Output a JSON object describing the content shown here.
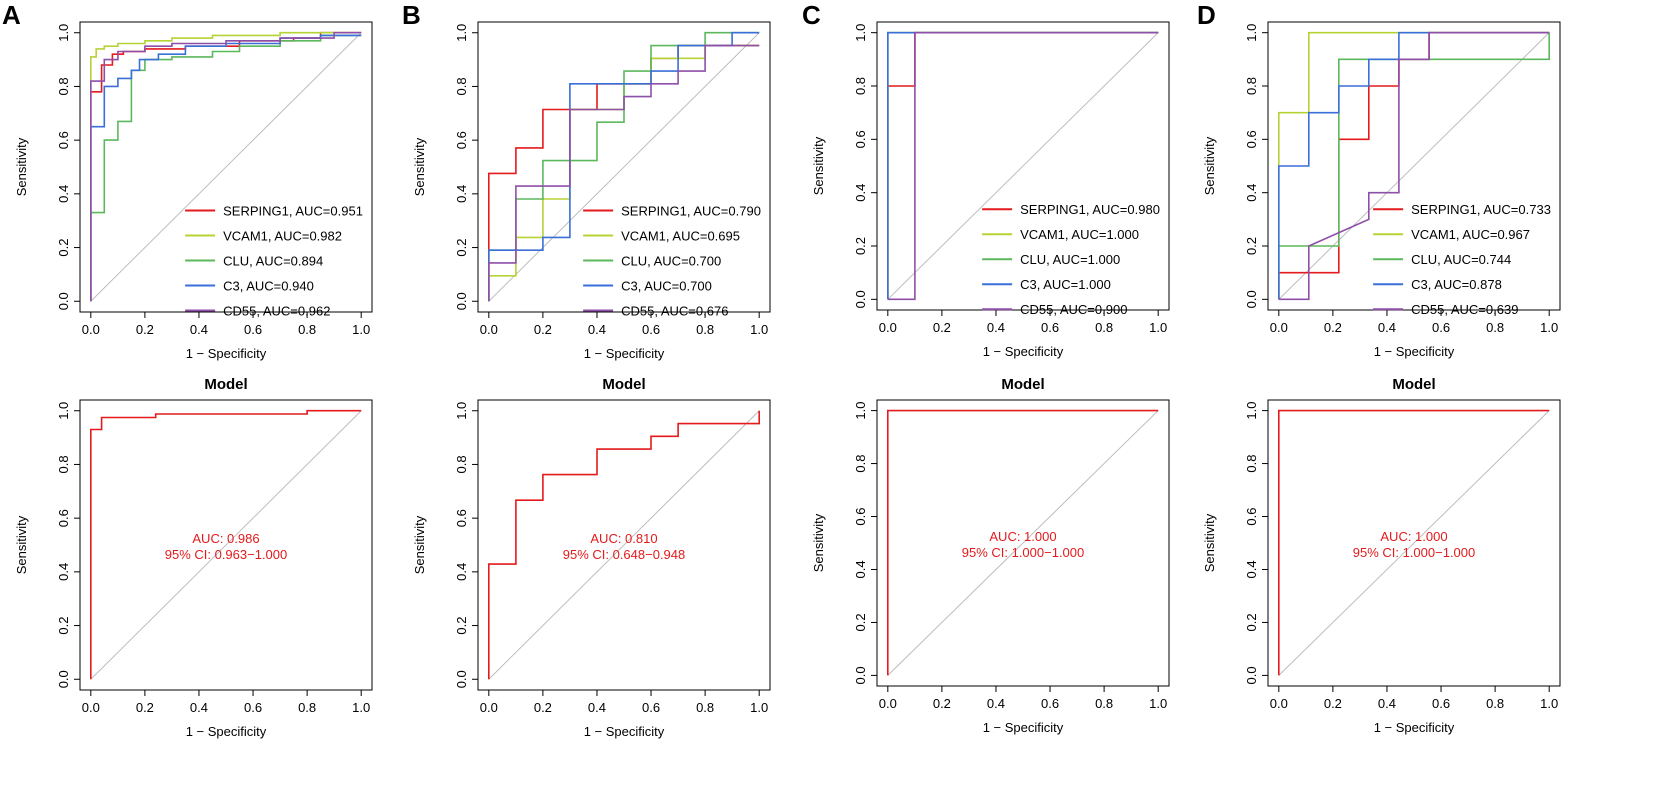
{
  "figure": {
    "panel_letters": [
      "A",
      "B",
      "C",
      "D"
    ]
  },
  "colors": {
    "SERPING1": "#e41a1c",
    "VCAM1": "#b5d334",
    "CLU": "#5cb85c",
    "C3": "#3a6fd8",
    "CD55": "#8e4fa8",
    "model": "#e41a1c",
    "diagonal": "#bdbdbd"
  },
  "chart_data": [
    {
      "id": "A-top",
      "type": "line",
      "panel": "A",
      "title": "",
      "xlabel": "1 − Specificity",
      "ylabel": "Sensitivity",
      "xlim": [
        0,
        1
      ],
      "ylim": [
        0,
        1
      ],
      "xticks": [
        "0.0",
        "0.2",
        "0.4",
        "0.6",
        "0.8",
        "1.0"
      ],
      "yticks": [
        "0.0",
        "0.2",
        "0.4",
        "0.6",
        "0.8",
        "1.0"
      ],
      "legend_position": "bottom-right",
      "series": [
        {
          "name": "SERPING1",
          "label": "SERPING1, AUC=0.951",
          "x": [
            0,
            0,
            0.04,
            0.04,
            0.08,
            0.08,
            0.12,
            0.12,
            0.2,
            0.2,
            0.35,
            0.35,
            0.55,
            0.55,
            0.75,
            0.75,
            0.85,
            0.85,
            1
          ],
          "y": [
            0,
            0.78,
            0.78,
            0.88,
            0.88,
            0.92,
            0.92,
            0.93,
            0.93,
            0.94,
            0.94,
            0.95,
            0.95,
            0.97,
            0.97,
            0.98,
            0.98,
            1,
            1
          ]
        },
        {
          "name": "VCAM1",
          "label": "VCAM1, AUC=0.982",
          "x": [
            0,
            0,
            0.02,
            0.02,
            0.05,
            0.05,
            0.1,
            0.1,
            0.2,
            0.2,
            0.3,
            0.3,
            0.45,
            0.45,
            0.7,
            0.7,
            1
          ],
          "y": [
            0,
            0.91,
            0.91,
            0.94,
            0.94,
            0.95,
            0.95,
            0.96,
            0.96,
            0.97,
            0.97,
            0.98,
            0.98,
            0.99,
            0.99,
            1,
            1
          ]
        },
        {
          "name": "CLU",
          "label": "CLU, AUC=0.894",
          "x": [
            0,
            0,
            0.05,
            0.05,
            0.1,
            0.1,
            0.15,
            0.15,
            0.2,
            0.2,
            0.3,
            0.3,
            0.45,
            0.45,
            0.55,
            0.55,
            0.7,
            0.7,
            0.85,
            0.85,
            1
          ],
          "y": [
            0,
            0.33,
            0.33,
            0.6,
            0.6,
            0.67,
            0.67,
            0.86,
            0.86,
            0.9,
            0.9,
            0.91,
            0.91,
            0.93,
            0.93,
            0.95,
            0.95,
            0.97,
            0.97,
            0.99,
            0.99
          ]
        },
        {
          "name": "C3",
          "label": "C3, AUC=0.940",
          "x": [
            0,
            0,
            0.05,
            0.05,
            0.1,
            0.1,
            0.15,
            0.15,
            0.18,
            0.18,
            0.25,
            0.25,
            0.35,
            0.35,
            0.5,
            0.5,
            0.7,
            0.7,
            0.85,
            0.85,
            1
          ],
          "y": [
            0,
            0.65,
            0.65,
            0.8,
            0.8,
            0.83,
            0.83,
            0.86,
            0.86,
            0.9,
            0.9,
            0.92,
            0.92,
            0.95,
            0.95,
            0.96,
            0.96,
            0.98,
            0.98,
            0.99,
            0.99
          ]
        },
        {
          "name": "CD55",
          "label": "CD55, AUC=0.962",
          "x": [
            0,
            0,
            0.05,
            0.05,
            0.1,
            0.1,
            0.2,
            0.2,
            0.3,
            0.3,
            0.5,
            0.5,
            0.7,
            0.7,
            0.9,
            0.9,
            1
          ],
          "y": [
            0,
            0.82,
            0.82,
            0.9,
            0.9,
            0.93,
            0.93,
            0.95,
            0.95,
            0.96,
            0.96,
            0.97,
            0.97,
            0.98,
            0.98,
            1,
            1
          ]
        }
      ]
    },
    {
      "id": "B-top",
      "type": "line",
      "panel": "B",
      "title": "",
      "xlabel": "1 − Specificity",
      "ylabel": "Sensitivity",
      "xlim": [
        0,
        1
      ],
      "ylim": [
        0,
        1
      ],
      "xticks": [
        "0.0",
        "0.2",
        "0.4",
        "0.6",
        "0.8",
        "1.0"
      ],
      "yticks": [
        "0.0",
        "0.2",
        "0.4",
        "0.6",
        "0.8",
        "1.0"
      ],
      "legend_position": "bottom-right",
      "series": [
        {
          "name": "SERPING1",
          "label": "SERPING1, AUC=0.790",
          "x": [
            0,
            0,
            0.1,
            0.1,
            0.2,
            0.2,
            0.4,
            0.4,
            0.6,
            0.6,
            0.7,
            0.7,
            1
          ],
          "y": [
            0,
            0.476,
            0.476,
            0.571,
            0.571,
            0.714,
            0.714,
            0.81,
            0.81,
            0.905,
            0.905,
            0.952,
            0.952
          ]
        },
        {
          "name": "VCAM1",
          "label": "VCAM1, AUC=0.695",
          "x": [
            0,
            0,
            0.1,
            0.1,
            0.2,
            0.2,
            0.3,
            0.3,
            0.5,
            0.5,
            0.6,
            0.6,
            0.8,
            0.8,
            1
          ],
          "y": [
            0,
            0.095,
            0.095,
            0.238,
            0.238,
            0.381,
            0.381,
            0.714,
            0.714,
            0.81,
            0.81,
            0.905,
            0.905,
            0.952,
            0.952
          ]
        },
        {
          "name": "CLU",
          "label": "CLU, AUC=0.700",
          "x": [
            0,
            0,
            0.1,
            0.1,
            0.2,
            0.2,
            0.4,
            0.4,
            0.5,
            0.5,
            0.6,
            0.6,
            0.8,
            0.8,
            1
          ],
          "y": [
            0,
            0.19,
            0.19,
            0.381,
            0.381,
            0.524,
            0.524,
            0.667,
            0.667,
            0.857,
            0.857,
            0.952,
            0.952,
            1,
            1
          ]
        },
        {
          "name": "C3",
          "label": "C3, AUC=0.700",
          "x": [
            0,
            0,
            0.2,
            0.2,
            0.3,
            0.3,
            0.6,
            0.6,
            0.7,
            0.7,
            0.9,
            0.9,
            1
          ],
          "y": [
            0,
            0.19,
            0.19,
            0.238,
            0.238,
            0.81,
            0.81,
            0.857,
            0.857,
            0.952,
            0.952,
            1,
            1
          ]
        },
        {
          "name": "CD55",
          "label": "CD55, AUC=0.676",
          "x": [
            0,
            0,
            0.1,
            0.1,
            0.3,
            0.3,
            0.5,
            0.5,
            0.6,
            0.6,
            0.7,
            0.7,
            0.8,
            0.8,
            1
          ],
          "y": [
            0,
            0.143,
            0.143,
            0.429,
            0.429,
            0.714,
            0.714,
            0.762,
            0.762,
            0.81,
            0.81,
            0.857,
            0.857,
            0.952,
            0.952
          ]
        }
      ]
    },
    {
      "id": "C-top",
      "type": "line",
      "panel": "C",
      "title": "",
      "xlabel": "1 − Specificity",
      "ylabel": "Sensitivity",
      "xlim": [
        0,
        1
      ],
      "ylim": [
        0,
        1
      ],
      "xticks": [
        "0.0",
        "0.2",
        "0.4",
        "0.6",
        "0.8",
        "1.0"
      ],
      "yticks": [
        "0.0",
        "0.2",
        "0.4",
        "0.6",
        "0.8",
        "1.0"
      ],
      "legend_position": "bottom-right",
      "series": [
        {
          "name": "SERPING1",
          "label": "SERPING1, AUC=0.980",
          "x": [
            0,
            0,
            0.1,
            0.1,
            1
          ],
          "y": [
            0,
            0.8,
            0.8,
            1,
            1
          ]
        },
        {
          "name": "VCAM1",
          "label": "VCAM1, AUC=1.000",
          "x": [
            0,
            0,
            1
          ],
          "y": [
            0,
            1,
            1
          ]
        },
        {
          "name": "CLU",
          "label": "CLU, AUC=1.000",
          "x": [
            0,
            0,
            1
          ],
          "y": [
            0,
            1,
            1
          ]
        },
        {
          "name": "C3",
          "label": "C3, AUC=1.000",
          "x": [
            0,
            0,
            1
          ],
          "y": [
            0,
            1,
            1
          ]
        },
        {
          "name": "CD55",
          "label": "CD55, AUC=0.900",
          "x": [
            0,
            0.1,
            0.1,
            1
          ],
          "y": [
            0,
            0,
            1,
            1
          ]
        }
      ]
    },
    {
      "id": "D-top",
      "type": "line",
      "panel": "D",
      "title": "",
      "xlabel": "1 − Specificity",
      "ylabel": "Sensitivity",
      "xlim": [
        0,
        1
      ],
      "ylim": [
        0,
        1
      ],
      "xticks": [
        "0.0",
        "0.2",
        "0.4",
        "0.6",
        "0.8",
        "1.0"
      ],
      "yticks": [
        "0.0",
        "0.2",
        "0.4",
        "0.6",
        "0.8",
        "1.0"
      ],
      "legend_position": "bottom-right",
      "series": [
        {
          "name": "SERPING1",
          "label": "SERPING1, AUC=0.733",
          "x": [
            0,
            0,
            0.222,
            0.222,
            0.333,
            0.333,
            0.444,
            0.444,
            0.556,
            0.556,
            1
          ],
          "y": [
            0,
            0.1,
            0.1,
            0.6,
            0.6,
            0.8,
            0.8,
            0.9,
            0.9,
            1,
            1
          ]
        },
        {
          "name": "VCAM1",
          "label": "VCAM1, AUC=0.967",
          "x": [
            0,
            0,
            0.111,
            0.111,
            1
          ],
          "y": [
            0,
            0.7,
            0.7,
            1,
            1
          ]
        },
        {
          "name": "CLU",
          "label": "CLU, AUC=0.744",
          "x": [
            0,
            0,
            0.222,
            0.222,
            1,
            1
          ],
          "y": [
            0,
            0.2,
            0.2,
            0.9,
            0.9,
            1
          ]
        },
        {
          "name": "C3",
          "label": "C3, AUC=0.878",
          "x": [
            0,
            0,
            0.111,
            0.111,
            0.222,
            0.222,
            0.333,
            0.333,
            0.444,
            0.444,
            1
          ],
          "y": [
            0,
            0.5,
            0.5,
            0.7,
            0.7,
            0.8,
            0.8,
            0.9,
            0.9,
            1,
            1
          ]
        },
        {
          "name": "CD55",
          "label": "CD55, AUC=0.639",
          "x": [
            0,
            0.111,
            0.111,
            0.333,
            0.333,
            0.444,
            0.444,
            0.556,
            0.556,
            1
          ],
          "y": [
            0,
            0,
            0.2,
            0.3,
            0.4,
            0.4,
            0.9,
            0.9,
            1,
            1
          ]
        }
      ]
    },
    {
      "id": "A-bottom",
      "type": "line",
      "panel": "A",
      "title": "Model",
      "xlabel": "1 − Specificity",
      "ylabel": "Sensitivity",
      "xlim": [
        0,
        1
      ],
      "ylim": [
        0,
        1
      ],
      "xticks": [
        "0.0",
        "0.2",
        "0.4",
        "0.6",
        "0.8",
        "1.0"
      ],
      "yticks": [
        "0.0",
        "0.2",
        "0.4",
        "0.6",
        "0.8",
        "1.0"
      ],
      "annotation": {
        "auc": "AUC: 0.986",
        "ci": "95% CI: 0.963−1.000"
      },
      "series": [
        {
          "name": "Model",
          "x": [
            0,
            0,
            0.04,
            0.04,
            0.24,
            0.24,
            0.8,
            0.8,
            1
          ],
          "y": [
            0,
            0.93,
            0.93,
            0.975,
            0.975,
            0.988,
            0.988,
            1,
            1
          ]
        }
      ]
    },
    {
      "id": "B-bottom",
      "type": "line",
      "panel": "B",
      "title": "Model",
      "xlabel": "1 − Specificity",
      "ylabel": "Sensitivity",
      "xlim": [
        0,
        1
      ],
      "ylim": [
        0,
        1
      ],
      "xticks": [
        "0.0",
        "0.2",
        "0.4",
        "0.6",
        "0.8",
        "1.0"
      ],
      "yticks": [
        "0.0",
        "0.2",
        "0.4",
        "0.6",
        "0.8",
        "1.0"
      ],
      "annotation": {
        "auc": "AUC: 0.810",
        "ci": "95% CI: 0.648−0.948"
      },
      "series": [
        {
          "name": "Model",
          "x": [
            0,
            0,
            0.1,
            0.1,
            0.2,
            0.2,
            0.4,
            0.4,
            0.6,
            0.6,
            0.7,
            0.7,
            1,
            1
          ],
          "y": [
            0,
            0.429,
            0.429,
            0.667,
            0.667,
            0.762,
            0.762,
            0.857,
            0.857,
            0.905,
            0.905,
            0.952,
            0.952,
            1
          ]
        }
      ]
    },
    {
      "id": "C-bottom",
      "type": "line",
      "panel": "C",
      "title": "Model",
      "xlabel": "1 − Specificity",
      "ylabel": "Sensitivity",
      "xlim": [
        0,
        1
      ],
      "ylim": [
        0,
        1
      ],
      "xticks": [
        "0.0",
        "0.2",
        "0.4",
        "0.6",
        "0.8",
        "1.0"
      ],
      "yticks": [
        "0.0",
        "0.2",
        "0.4",
        "0.6",
        "0.8",
        "1.0"
      ],
      "annotation": {
        "auc": "AUC: 1.000",
        "ci": "95% CI: 1.000−1.000"
      },
      "series": [
        {
          "name": "Model",
          "x": [
            0,
            0,
            1
          ],
          "y": [
            0,
            1,
            1
          ]
        }
      ]
    },
    {
      "id": "D-bottom",
      "type": "line",
      "panel": "D",
      "title": "Model",
      "xlabel": "1 − Specificity",
      "ylabel": "Sensitivity",
      "xlim": [
        0,
        1
      ],
      "ylim": [
        0,
        1
      ],
      "xticks": [
        "0.0",
        "0.2",
        "0.4",
        "0.6",
        "0.8",
        "1.0"
      ],
      "yticks": [
        "0.0",
        "0.2",
        "0.4",
        "0.6",
        "0.8",
        "1.0"
      ],
      "annotation": {
        "auc": "AUC: 1.000",
        "ci": "95% CI: 1.000−1.000"
      },
      "series": [
        {
          "name": "Model",
          "x": [
            0,
            0,
            1
          ],
          "y": [
            0,
            1,
            1
          ]
        }
      ]
    }
  ]
}
